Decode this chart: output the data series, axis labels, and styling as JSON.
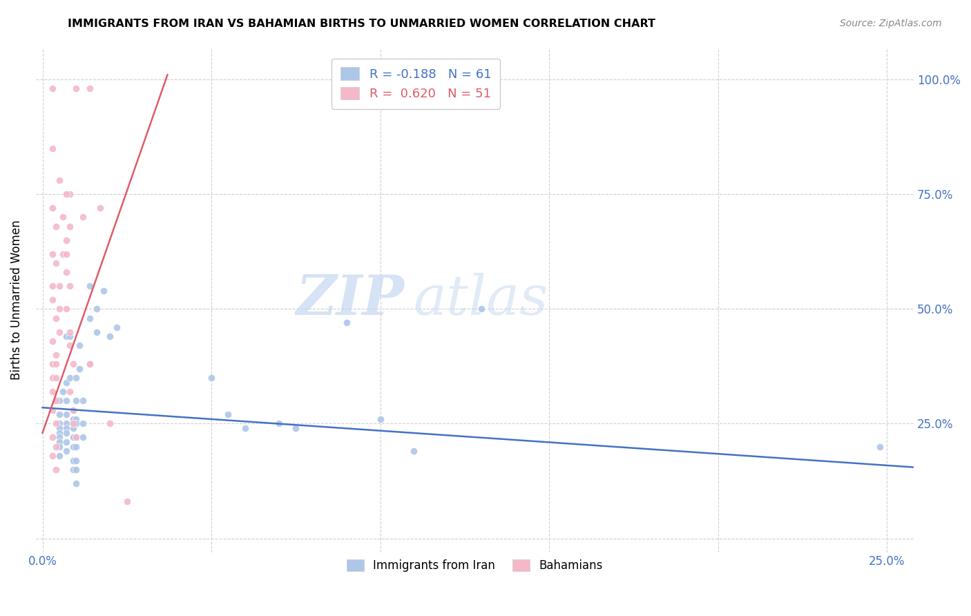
{
  "title": "IMMIGRANTS FROM IRAN VS BAHAMIAN BIRTHS TO UNMARRIED WOMEN CORRELATION CHART",
  "source": "Source: ZipAtlas.com",
  "ylabel": "Births to Unmarried Women",
  "y_ticks": [
    0.0,
    0.25,
    0.5,
    0.75,
    1.0
  ],
  "y_tick_labels": [
    "",
    "25.0%",
    "50.0%",
    "75.0%",
    "100.0%"
  ],
  "legend_entry1": "R = -0.188   N = 61",
  "legend_entry2": "R =  0.620   N = 51",
  "legend_series1": "Immigrants from Iran",
  "legend_series2": "Bahamians",
  "blue_color": "#aec6e8",
  "pink_color": "#f4b8c8",
  "blue_line_color": "#4472c4",
  "pink_line_color": "#e05a6a",
  "watermark_zip": "ZIP",
  "watermark_atlas": "atlas",
  "blue_scatter": [
    [
      0.005,
      0.3
    ],
    [
      0.005,
      0.27
    ],
    [
      0.005,
      0.25
    ],
    [
      0.005,
      0.24
    ],
    [
      0.005,
      0.23
    ],
    [
      0.005,
      0.22
    ],
    [
      0.005,
      0.21
    ],
    [
      0.005,
      0.2
    ],
    [
      0.005,
      0.18
    ],
    [
      0.006,
      0.32
    ],
    [
      0.007,
      0.44
    ],
    [
      0.007,
      0.34
    ],
    [
      0.007,
      0.3
    ],
    [
      0.007,
      0.27
    ],
    [
      0.007,
      0.25
    ],
    [
      0.007,
      0.24
    ],
    [
      0.007,
      0.23
    ],
    [
      0.007,
      0.21
    ],
    [
      0.007,
      0.19
    ],
    [
      0.008,
      0.44
    ],
    [
      0.008,
      0.35
    ],
    [
      0.009,
      0.28
    ],
    [
      0.009,
      0.26
    ],
    [
      0.009,
      0.25
    ],
    [
      0.009,
      0.24
    ],
    [
      0.009,
      0.22
    ],
    [
      0.009,
      0.2
    ],
    [
      0.009,
      0.17
    ],
    [
      0.009,
      0.15
    ],
    [
      0.01,
      0.35
    ],
    [
      0.01,
      0.3
    ],
    [
      0.01,
      0.26
    ],
    [
      0.01,
      0.25
    ],
    [
      0.01,
      0.22
    ],
    [
      0.01,
      0.2
    ],
    [
      0.01,
      0.17
    ],
    [
      0.01,
      0.15
    ],
    [
      0.01,
      0.12
    ],
    [
      0.011,
      0.42
    ],
    [
      0.011,
      0.37
    ],
    [
      0.012,
      0.3
    ],
    [
      0.012,
      0.25
    ],
    [
      0.012,
      0.22
    ],
    [
      0.014,
      0.55
    ],
    [
      0.014,
      0.48
    ],
    [
      0.014,
      0.38
    ],
    [
      0.016,
      0.5
    ],
    [
      0.016,
      0.45
    ],
    [
      0.018,
      0.54
    ],
    [
      0.02,
      0.44
    ],
    [
      0.022,
      0.46
    ],
    [
      0.05,
      0.35
    ],
    [
      0.055,
      0.27
    ],
    [
      0.06,
      0.24
    ],
    [
      0.07,
      0.25
    ],
    [
      0.075,
      0.24
    ],
    [
      0.09,
      0.47
    ],
    [
      0.1,
      0.26
    ],
    [
      0.11,
      0.19
    ],
    [
      0.13,
      0.5
    ],
    [
      0.248,
      0.2
    ]
  ],
  "pink_scatter": [
    [
      0.003,
      0.98
    ],
    [
      0.01,
      0.98
    ],
    [
      0.014,
      0.98
    ],
    [
      0.003,
      0.85
    ],
    [
      0.005,
      0.78
    ],
    [
      0.008,
      0.75
    ],
    [
      0.003,
      0.72
    ],
    [
      0.006,
      0.7
    ],
    [
      0.004,
      0.68
    ],
    [
      0.007,
      0.65
    ],
    [
      0.003,
      0.62
    ],
    [
      0.006,
      0.62
    ],
    [
      0.004,
      0.6
    ],
    [
      0.007,
      0.58
    ],
    [
      0.003,
      0.55
    ],
    [
      0.005,
      0.55
    ],
    [
      0.003,
      0.52
    ],
    [
      0.005,
      0.5
    ],
    [
      0.004,
      0.48
    ],
    [
      0.005,
      0.45
    ],
    [
      0.003,
      0.43
    ],
    [
      0.004,
      0.4
    ],
    [
      0.003,
      0.38
    ],
    [
      0.004,
      0.38
    ],
    [
      0.003,
      0.35
    ],
    [
      0.004,
      0.35
    ],
    [
      0.003,
      0.32
    ],
    [
      0.004,
      0.3
    ],
    [
      0.003,
      0.28
    ],
    [
      0.004,
      0.25
    ],
    [
      0.003,
      0.22
    ],
    [
      0.004,
      0.2
    ],
    [
      0.003,
      0.18
    ],
    [
      0.004,
      0.15
    ],
    [
      0.007,
      0.75
    ],
    [
      0.008,
      0.68
    ],
    [
      0.007,
      0.62
    ],
    [
      0.008,
      0.55
    ],
    [
      0.007,
      0.5
    ],
    [
      0.008,
      0.45
    ],
    [
      0.008,
      0.42
    ],
    [
      0.009,
      0.38
    ],
    [
      0.008,
      0.32
    ],
    [
      0.009,
      0.28
    ],
    [
      0.009,
      0.25
    ],
    [
      0.01,
      0.22
    ],
    [
      0.012,
      0.7
    ],
    [
      0.014,
      0.38
    ],
    [
      0.017,
      0.72
    ],
    [
      0.02,
      0.25
    ],
    [
      0.025,
      0.08
    ]
  ],
  "xlim": [
    -0.002,
    0.258
  ],
  "ylim": [
    -0.03,
    1.07
  ],
  "x_percent_ticks": [
    0.0,
    0.05,
    0.1,
    0.15,
    0.2,
    0.25
  ],
  "x_percent_labels": [
    "0.0%",
    "",
    "",
    "",
    "",
    "25.0%"
  ],
  "blue_trend_x": [
    0.0,
    0.258
  ],
  "blue_trend_y": [
    0.285,
    0.155
  ],
  "pink_trend_x": [
    0.0,
    0.037
  ],
  "pink_trend_y": [
    0.23,
    1.01
  ]
}
